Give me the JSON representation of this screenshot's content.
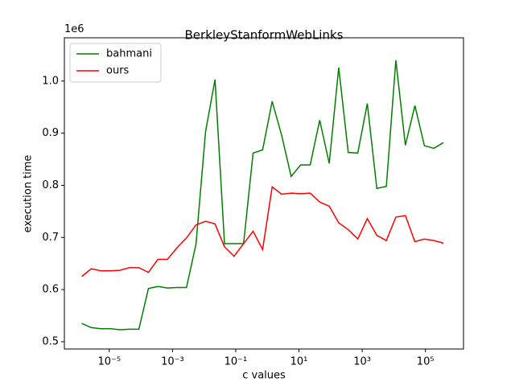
{
  "chart_data": {
    "type": "line",
    "title": "BerkleyStanformWebLinks",
    "xlabel": "c values",
    "ylabel": "execution time",
    "y_offset_label": "1e6",
    "xscale": "log",
    "legend": "upper left",
    "x": [
      1.35e-06,
      2.7e-06,
      5.4e-06,
      1.08e-05,
      2.16e-05,
      4.32e-05,
      8.64e-05,
      0.000173,
      0.000346,
      0.000691,
      0.00138,
      0.00276,
      0.00553,
      0.0111,
      0.0221,
      0.0442,
      0.0885,
      0.177,
      0.354,
      0.708,
      1.42,
      2.83,
      5.66,
      11.3,
      22.6,
      45.3,
      90.6,
      181,
      362,
      725,
      1450,
      2900,
      5800,
      11600,
      23200,
      46400,
      92800,
      185000,
      371000
    ],
    "series": [
      {
        "name": "bahmani",
        "color": "#008000",
        "values": [
          0.535,
          0.527,
          0.525,
          0.525,
          0.523,
          0.524,
          0.524,
          0.602,
          0.606,
          0.603,
          0.604,
          0.604,
          0.687,
          0.903,
          1.003,
          0.688,
          0.688,
          0.688,
          0.862,
          0.868,
          0.961,
          0.896,
          0.817,
          0.839,
          0.839,
          0.925,
          0.842,
          1.026,
          0.863,
          0.862,
          0.957,
          0.794,
          0.798,
          1.04,
          0.877,
          0.953,
          0.876,
          0.871,
          0.882
        ]
      },
      {
        "name": "ours",
        "color": "#ff0000",
        "values": [
          0.625,
          0.64,
          0.636,
          0.636,
          0.637,
          0.642,
          0.642,
          0.633,
          0.658,
          0.658,
          0.68,
          0.699,
          0.724,
          0.731,
          0.726,
          0.682,
          0.664,
          0.688,
          0.712,
          0.677,
          0.797,
          0.783,
          0.785,
          0.784,
          0.785,
          0.768,
          0.76,
          0.728,
          0.715,
          0.697,
          0.736,
          0.704,
          0.694,
          0.739,
          0.742,
          0.692,
          0.697,
          0.694,
          0.689
        ]
      }
    ],
    "xlim": [
      3.8e-07,
      1600000.0
    ],
    "xticks": [
      {
        "value": 1e-05,
        "label": "10⁻⁵"
      },
      {
        "value": 0.001,
        "label": "10⁻³"
      },
      {
        "value": 0.1,
        "label": "10⁻¹"
      },
      {
        "value": 10,
        "label": "10¹"
      },
      {
        "value": 1000,
        "label": "10³"
      },
      {
        "value": 100000,
        "label": "10⁵"
      }
    ],
    "ylim": [
      0.486,
      1.083
    ],
    "yticks": [
      0.5,
      0.6,
      0.7,
      0.8,
      0.9,
      {
        "value": 1,
        "label": "1.0"
      }
    ]
  }
}
